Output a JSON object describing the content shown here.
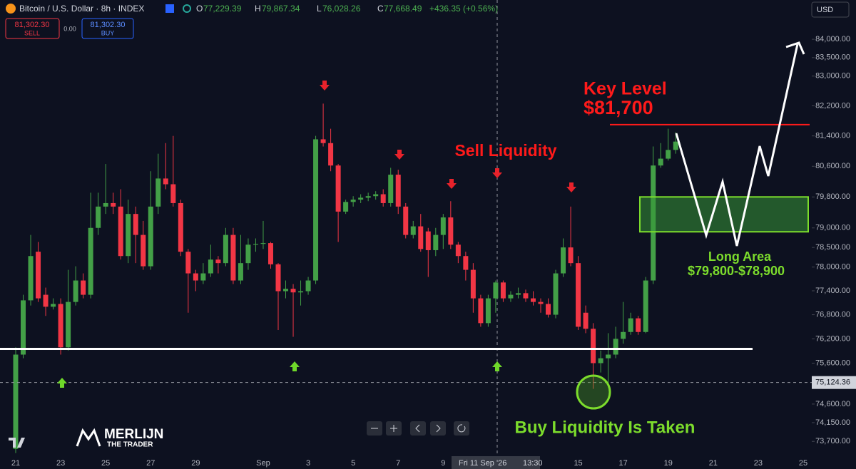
{
  "header": {
    "symbol": "Bitcoin / U.S. Dollar · 8h · INDEX",
    "ohlc": [
      {
        "key": "O",
        "value": "77,229.39"
      },
      {
        "key": "H",
        "value": "79,867.34"
      },
      {
        "key": "L",
        "value": "76,028.26"
      },
      {
        "key": "C",
        "value": "77,668.49"
      }
    ],
    "change": "+436.35 (+0.56%)",
    "sell_price": "81,302.30",
    "sell_label": "SELL",
    "spread": "0.00",
    "buy_price": "81,302.30",
    "buy_label": "BUY",
    "currency": "USD"
  },
  "logo": {
    "name": "MERLIJN",
    "tagline": "THE TRADER"
  },
  "chart_data": {
    "type": "candlestick",
    "log_scale": true,
    "up_color": "#43a047",
    "down_color": "#f23645",
    "categories": [
      "21",
      null,
      null,
      null,
      null,
      null,
      "23",
      null,
      null,
      null,
      null,
      null,
      "25",
      null,
      null,
      null,
      null,
      null,
      "27",
      null,
      null,
      null,
      null,
      null,
      "29",
      null,
      null,
      null,
      null,
      null,
      null,
      null,
      null,
      "Sep",
      null,
      null,
      null,
      null,
      null,
      "3",
      null,
      null,
      null,
      null,
      null,
      "5",
      null,
      null,
      null,
      null,
      null,
      "7",
      null,
      null,
      null,
      null,
      null,
      "9",
      null,
      null,
      null,
      null,
      null,
      null,
      null,
      null,
      null,
      null,
      null,
      null,
      null,
      null,
      null,
      null,
      null,
      "15",
      null,
      null,
      null,
      null,
      null,
      "17",
      null,
      null,
      null,
      null,
      null,
      "19",
      null,
      null,
      null,
      null,
      null,
      "21",
      null,
      null,
      null,
      null,
      null,
      "23",
      null,
      null,
      null,
      null,
      null,
      "25"
    ],
    "open": [
      73520,
      75810,
      77160,
      78390,
      77300,
      77000,
      77070,
      75990,
      77120,
      77660,
      77300,
      79000,
      79550,
      79640,
      79550,
      78280,
      79360,
      78820,
      78020,
      79550,
      80280,
      80130,
      79640,
      78390,
      77840,
      77660,
      77840,
      78190,
      78100,
      78820,
      77660,
      78100,
      78570,
      78590,
      78610,
      78070,
      77390,
      77450,
      77360,
      77390,
      77660,
      81310,
      81210,
      80620,
      79420,
      79670,
      79730,
      79780,
      79820,
      79870,
      79640,
      80380,
      79550,
      78820,
      79040,
      78910,
      78430,
      78820,
      79270,
      78570,
      78280,
      77930,
      77210,
      76590,
      77210,
      77610,
      77210,
      77300,
      77340,
      77210,
      77120,
      77070,
      76800,
      77840,
      78500,
      78100,
      76850,
      76450,
      75600,
      75720,
      75810,
      76200,
      76370,
      76710,
      76370,
      77660,
      80620,
      80800,
      81030,
      null,
      null,
      null,
      null,
      null,
      null,
      null,
      null,
      null,
      null,
      null,
      null,
      null,
      null,
      null,
      null,
      null
    ],
    "high": [
      75990,
      77300,
      78820,
      78640,
      77480,
      77210,
      77210,
      77930,
      78020,
      77840,
      79910,
      79910,
      80660,
      79910,
      80000,
      79730,
      79550,
      79180,
      80470,
      80930,
      81210,
      81400,
      79730,
      78460,
      77930,
      78100,
      78570,
      78280,
      79000,
      79000,
      78820,
      78730,
      78730,
      79180,
      78640,
      78100,
      77660,
      77570,
      77660,
      77750,
      81400,
      82260,
      81590,
      80660,
      79730,
      79820,
      79870,
      79910,
      79950,
      80000,
      80560,
      80510,
      79640,
      79180,
      79360,
      79000,
      79000,
      79360,
      79690,
      78640,
      78390,
      78100,
      77300,
      77300,
      77660,
      77660,
      77390,
      77480,
      77430,
      77390,
      77210,
      77210,
      77930,
      78730,
      79550,
      78280,
      77030,
      76590,
      75910,
      76340,
      76500,
      77120,
      76850,
      76770,
      77750,
      81120,
      81210,
      81590,
      81500,
      null,
      null,
      null,
      null,
      null,
      null,
      null,
      null,
      null,
      null,
      null,
      null,
      null,
      null,
      null,
      null,
      null
    ],
    "low": [
      73420,
      75720,
      77030,
      77120,
      76770,
      76930,
      75810,
      75910,
      77030,
      77210,
      77210,
      78820,
      79360,
      79360,
      78190,
      78100,
      78100,
      77930,
      77930,
      79360,
      80000,
      79550,
      78280,
      76850,
      77390,
      77570,
      77750,
      77840,
      78020,
      77570,
      77570,
      77930,
      78390,
      78460,
      77960,
      76420,
      77210,
      76250,
      77030,
      77300,
      77570,
      81120,
      80470,
      78640,
      79360,
      79550,
      79640,
      79690,
      79730,
      79550,
      79550,
      79360,
      78730,
      78730,
      78390,
      77750,
      78280,
      78460,
      78460,
      78100,
      77660,
      76850,
      76500,
      76500,
      76850,
      77120,
      77120,
      77210,
      77120,
      77030,
      76850,
      76730,
      76710,
      77750,
      78020,
      76420,
      76340,
      74970,
      75370,
      75110,
      75720,
      76080,
      76300,
      76300,
      76340,
      77570,
      80560,
      80750,
      80930,
      null,
      null,
      null,
      null,
      null,
      null,
      null,
      null,
      null,
      null,
      null,
      null,
      null,
      null,
      null,
      null,
      null
    ],
    "close": [
      75810,
      77160,
      78280,
      77210,
      77000,
      77070,
      75990,
      77120,
      77660,
      77300,
      79000,
      79550,
      79640,
      79550,
      78280,
      79360,
      78820,
      78020,
      79550,
      80280,
      80130,
      79640,
      78390,
      77840,
      77660,
      77840,
      78190,
      78100,
      78820,
      77660,
      78100,
      78570,
      78590,
      78610,
      78070,
      77390,
      77450,
      77360,
      77390,
      77660,
      81310,
      81210,
      80620,
      79420,
      79670,
      79730,
      79780,
      79820,
      79870,
      79640,
      80380,
      79550,
      78820,
      79040,
      78460,
      78430,
      78820,
      79270,
      78570,
      78280,
      77930,
      77210,
      76590,
      77210,
      77610,
      77210,
      77300,
      77340,
      77210,
      77120,
      77070,
      76800,
      77840,
      78500,
      78100,
      76500,
      76450,
      75600,
      75720,
      75810,
      76200,
      76370,
      76710,
      76370,
      77660,
      80620,
      80800,
      81030,
      81250,
      null,
      null,
      null,
      null,
      null,
      null,
      null,
      null,
      null,
      null,
      null,
      null,
      null,
      null,
      null,
      null,
      null
    ],
    "ylim": [
      73380,
      85080
    ],
    "yticks": [
      {
        "value": 84000,
        "label": "84,000.00"
      },
      {
        "value": 83500,
        "label": "83,500.00"
      },
      {
        "value": 83000,
        "label": "83,000.00"
      },
      {
        "value": 82200,
        "label": "82,200.00"
      },
      {
        "value": 81400,
        "label": "81,400.00"
      },
      {
        "value": 80600,
        "label": "80,600.00"
      },
      {
        "value": 79800,
        "label": "79,800.00"
      },
      {
        "value": 79000,
        "label": "79,000.00"
      },
      {
        "value": 78500,
        "label": "78,500.00"
      },
      {
        "value": 78000,
        "label": "78,000.00"
      },
      {
        "value": 77400,
        "label": "77,400.00"
      },
      {
        "value": 76800,
        "label": "76,800.00"
      },
      {
        "value": 76200,
        "label": "76,200.00"
      },
      {
        "value": 75600,
        "label": "75,600.00"
      },
      {
        "value": 74600,
        "label": "74,600.00"
      },
      {
        "value": 74150,
        "label": "74,150.00"
      },
      {
        "value": 73700,
        "label": "73,700.00"
      }
    ],
    "price_line": {
      "value": 75124.36,
      "label": "75,124.36"
    },
    "crosshair_label": {
      "date": "Fri 11 Sep '26",
      "time": "13:30"
    },
    "key_level": {
      "title": "Key Level",
      "value": 81700,
      "label": "$81,700"
    },
    "long_area": {
      "title": "Long Area",
      "high": 79800,
      "low": 78900,
      "label": "$79,800-$78,900"
    },
    "support_level": 75950,
    "sell_liquidity": "Sell Liquidity",
    "buy_liquidity": "Buy Liquidity Is Taken"
  }
}
